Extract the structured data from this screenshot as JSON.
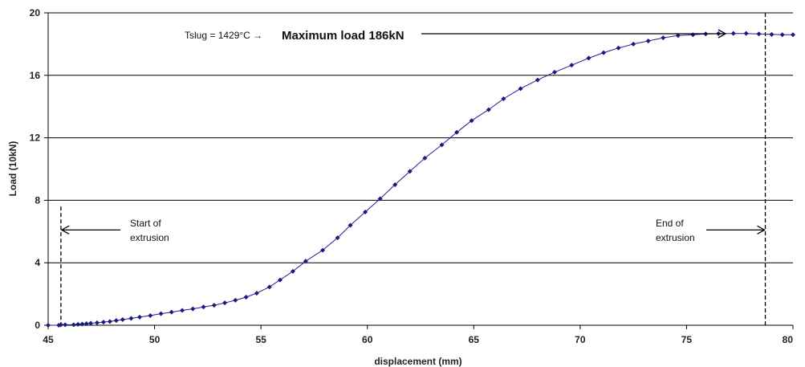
{
  "chart_data": {
    "type": "line",
    "xlabel": "displacement (mm)",
    "ylabel": "Load (10kN)",
    "xlim": [
      45,
      80
    ],
    "ylim": [
      0,
      20
    ],
    "xticks": [
      "45",
      "50",
      "55",
      "60",
      "65",
      "70",
      "75",
      "80"
    ],
    "yticks": [
      "0",
      "4",
      "8",
      "12",
      "16",
      "20"
    ],
    "grid": "horizontal",
    "series_color": "#1f1f8f",
    "marker_color": "#1a1a80",
    "x": [
      45.0,
      45.5,
      45.6,
      45.8,
      46.2,
      46.4,
      46.6,
      46.8,
      47.0,
      47.3,
      47.6,
      47.9,
      48.2,
      48.5,
      48.9,
      49.3,
      49.8,
      50.3,
      50.8,
      51.3,
      51.8,
      52.3,
      52.8,
      53.3,
      53.8,
      54.3,
      54.8,
      55.4,
      55.9,
      56.5,
      57.1,
      57.9,
      58.6,
      59.2,
      59.9,
      60.6,
      61.3,
      62.0,
      62.7,
      63.5,
      64.2,
      64.9,
      65.7,
      66.4,
      67.2,
      68.0,
      68.8,
      69.6,
      70.4,
      71.1,
      71.8,
      72.5,
      73.2,
      73.9,
      74.6,
      75.3,
      75.9,
      76.5,
      77.2,
      77.8,
      78.4,
      79.0,
      79.5,
      80.0
    ],
    "y": [
      0.0,
      0.0,
      0.03,
      0.03,
      0.03,
      0.06,
      0.08,
      0.1,
      0.13,
      0.16,
      0.2,
      0.24,
      0.3,
      0.36,
      0.44,
      0.52,
      0.62,
      0.74,
      0.84,
      0.95,
      1.05,
      1.17,
      1.28,
      1.43,
      1.6,
      1.8,
      2.05,
      2.45,
      2.9,
      3.45,
      4.1,
      4.8,
      5.6,
      6.4,
      7.25,
      8.1,
      9.0,
      9.85,
      10.7,
      11.55,
      12.35,
      13.1,
      13.8,
      14.5,
      15.15,
      15.7,
      16.2,
      16.65,
      17.1,
      17.45,
      17.75,
      18.0,
      18.2,
      18.4,
      18.55,
      18.6,
      18.65,
      18.67,
      18.68,
      18.68,
      18.65,
      18.62,
      18.6,
      18.6
    ],
    "annotations": {
      "max_line_prefix": "Tslug = 1429°C →",
      "max_line_main": "Maximum load 186kN",
      "start_line1": "Start of",
      "start_line2": "extrusion",
      "end_line1": "End of",
      "end_line2": "extrusion",
      "start_x": 45.6,
      "end_x": 78.7,
      "arrow_y": 6.1,
      "max_label_y": 18.7
    }
  }
}
